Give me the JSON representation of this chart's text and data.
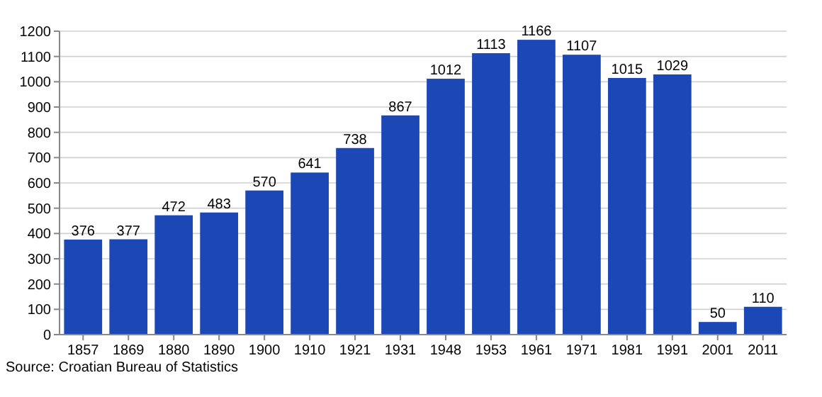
{
  "chart_data": {
    "type": "bar",
    "categories": [
      "1857",
      "1869",
      "1880",
      "1890",
      "1900",
      "1910",
      "1921",
      "1931",
      "1948",
      "1953",
      "1961",
      "1971",
      "1981",
      "1991",
      "2001",
      "2011"
    ],
    "values": [
      376,
      377,
      472,
      483,
      570,
      641,
      738,
      867,
      1012,
      1113,
      1166,
      1107,
      1015,
      1029,
      50,
      110
    ],
    "color": "#1c48b5",
    "ylim": [
      0,
      1200
    ],
    "yticks": [
      0,
      100,
      200,
      300,
      400,
      500,
      600,
      700,
      800,
      900,
      1000,
      1100,
      1200
    ],
    "grid": "y",
    "data_labels": true,
    "annotations": [
      "Source: Croatian Bureau of Statistics"
    ]
  }
}
